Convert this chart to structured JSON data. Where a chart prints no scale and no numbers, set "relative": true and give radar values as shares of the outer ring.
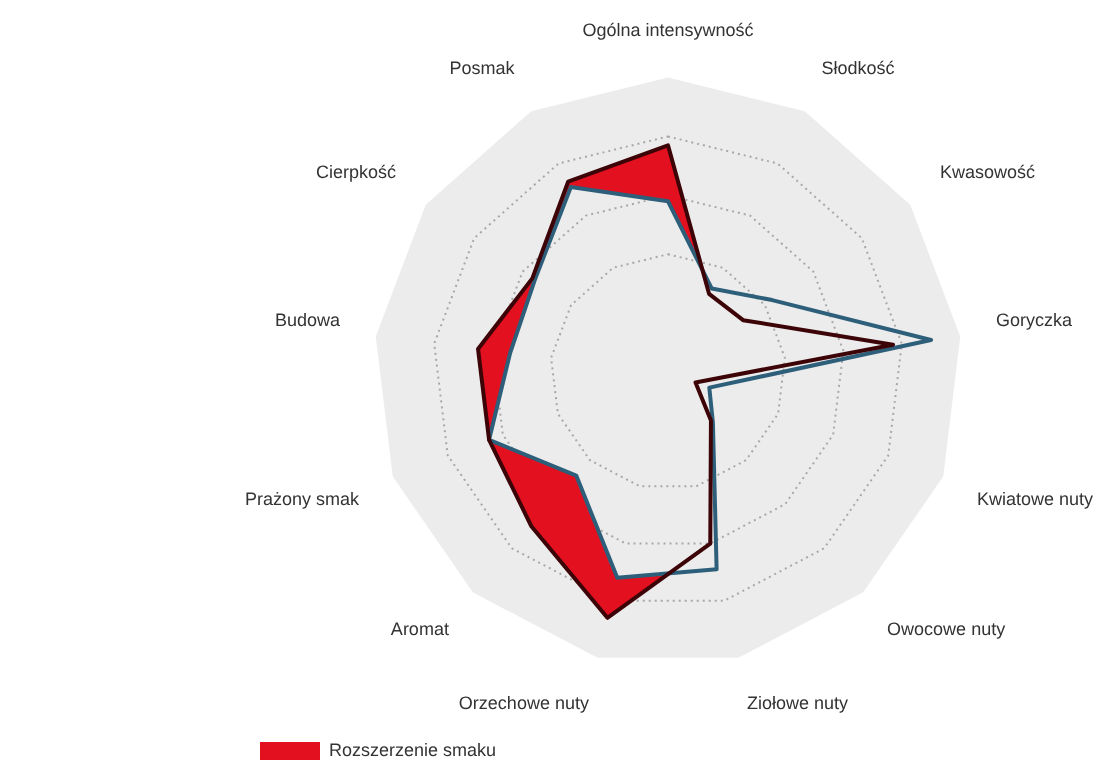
{
  "chart_data": {
    "type": "radar",
    "relative": true,
    "legend": "bottom left",
    "grid": true,
    "categories": [
      "Ogólna intensywność",
      "Słodkość",
      "Kwasowość",
      "Goryczka",
      "Kwiatowe nuty",
      "Owocowe nuty",
      "Ziołowe nuty",
      "Orzechowe nuty",
      "Aromat",
      "Prażony smak",
      "Budowa",
      "Cierpkość",
      "Posmak"
    ],
    "series": [
      {
        "color": "#2e5f7a",
        "values": [
          0.58,
          0.32,
          0.43,
          0.9,
          0.15,
          0.23,
          0.69,
          0.72,
          0.47,
          0.65,
          0.54,
          0.55,
          0.71
        ]
      },
      {
        "name": "Rozszerzenie smaku",
        "type": "area",
        "color": "#e3101f",
        "values": [
          0.77,
          0.3,
          0.31,
          0.77,
          0.1,
          0.22,
          0.6,
          0.86,
          0.7,
          0.65,
          0.65,
          0.56,
          0.73
        ]
      }
    ]
  }
}
